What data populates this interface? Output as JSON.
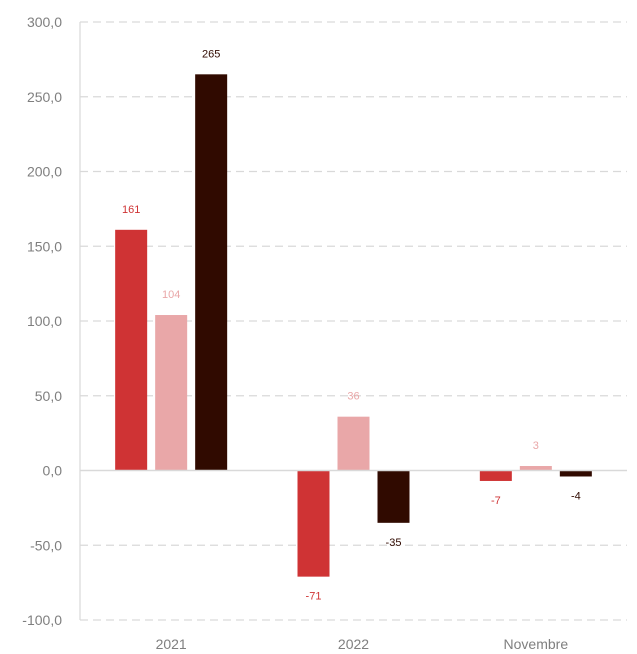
{
  "chart_data": {
    "type": "bar",
    "title": "",
    "xlabel": "",
    "ylabel": "",
    "categories": [
      "2021",
      "2022",
      "Novembre"
    ],
    "series": [
      {
        "values": [
          161,
          -71,
          -7
        ],
        "color": "#cf3334",
        "labels": [
          "161",
          "-71",
          "-7"
        ]
      },
      {
        "values": [
          104,
          36,
          3
        ],
        "color": "#e9a7a8",
        "labels": [
          "104",
          "36",
          "3"
        ]
      },
      {
        "values": [
          265,
          -35,
          -4
        ],
        "color": "#300a00",
        "labels": [
          "265",
          "-35",
          "-4"
        ]
      }
    ],
    "ylim": [
      -100,
      300
    ],
    "yticks": [
      -100,
      -50,
      0,
      50,
      100,
      150,
      200,
      250,
      300
    ],
    "ytick_labels": [
      "-100,0",
      "-50,0",
      "0,0",
      "50,0",
      "100,0",
      "150,0",
      "200,0",
      "250,0",
      "300,0"
    ],
    "grid": true,
    "grid_style": "dashed",
    "legend": "none"
  }
}
